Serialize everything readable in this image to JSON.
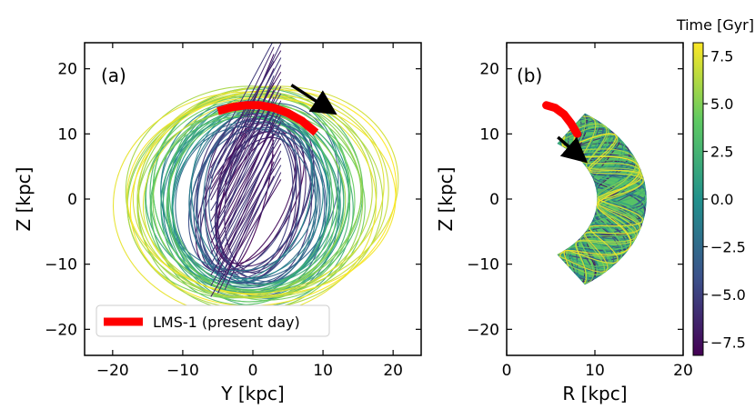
{
  "chart_data": [
    {
      "type": "line",
      "panel_label": "(a)",
      "xlabel": "Y [kpc]",
      "ylabel": "Z [kpc]",
      "xlim": [
        -24,
        24
      ],
      "ylim": [
        -24,
        24
      ],
      "xticks": [
        -20,
        -10,
        0,
        10,
        20
      ],
      "yticks": [
        -20,
        -10,
        0,
        10,
        20
      ],
      "xtick_labels": [
        "−20",
        "−10",
        "0",
        "10",
        "20"
      ],
      "ytick_labels": [
        "−20",
        "−10",
        "0",
        "10",
        "20"
      ],
      "series": [
        {
          "name": "orbit (colored by time)",
          "description_kind": "orbit"
        },
        {
          "name": "LMS-1 (present day)",
          "color": "#ff0000",
          "x": [
            -5,
            -3,
            -1,
            1,
            3,
            5,
            7,
            9
          ],
          "y": [
            13.5,
            14.1,
            14.4,
            14.4,
            14.0,
            13.2,
            12.0,
            10.2
          ]
        }
      ],
      "legend": {
        "position": "lower-left",
        "entries": [
          "LMS-1 (present day)"
        ]
      },
      "arrow": {
        "from": [
          5.5,
          17.5
        ],
        "to": [
          10.5,
          14.0
        ],
        "color": "#000000"
      }
    },
    {
      "type": "line",
      "panel_label": "(b)",
      "xlabel": "R [kpc]",
      "ylabel": "Z [kpc]",
      "xlim": [
        0,
        20
      ],
      "ylim": [
        -24,
        24
      ],
      "xticks": [
        0,
        10,
        20
      ],
      "yticks": [
        -20,
        -10,
        0,
        10,
        20
      ],
      "xtick_labels": [
        "0",
        "10",
        "20"
      ],
      "ytick_labels": [
        "−20",
        "−10",
        "0",
        "10",
        "20"
      ],
      "series": [
        {
          "name": "orbit (colored by time)",
          "description_kind": "orbit"
        },
        {
          "name": "LMS-1 (present day)",
          "color": "#ff0000",
          "x": [
            4.5,
            5.5,
            6.5,
            7.3,
            8.0
          ],
          "y": [
            14.4,
            14.0,
            13.0,
            11.6,
            10.0
          ]
        }
      ],
      "arrow": {
        "from": [
          5.8,
          9.5
        ],
        "to": [
          8.1,
          6.8
        ],
        "color": "#000000"
      }
    }
  ],
  "colorbar": {
    "title": "Time [Gyr]",
    "colormap": "viridis",
    "range": [
      -8.2,
      8.2
    ],
    "ticks": [
      7.5,
      5.0,
      2.5,
      0.0,
      -2.5,
      -5.0,
      -7.5
    ],
    "tick_labels": [
      "7.5",
      "5.0",
      "2.5",
      "0.0",
      "−2.5",
      "−5.0",
      "−7.5"
    ],
    "colors": [
      "#440154",
      "#3b528b",
      "#21918c",
      "#5ec962",
      "#fde725"
    ]
  }
}
